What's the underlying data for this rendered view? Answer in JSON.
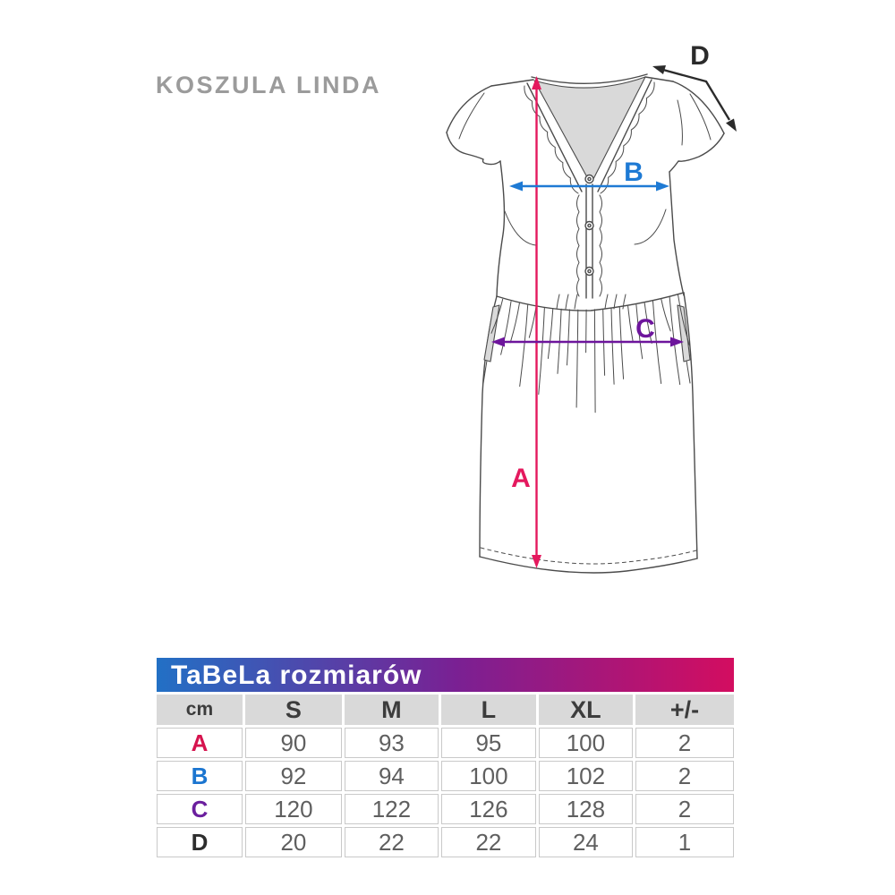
{
  "title": "KOSZULA LINDA",
  "diagram": {
    "arrows": {
      "a": {
        "label": "A",
        "color": "#e4195e"
      },
      "b": {
        "label": "B",
        "color": "#1e7ad4"
      },
      "c": {
        "label": "C",
        "color": "#6d159c"
      },
      "d": {
        "label": "D",
        "color": "#2b2b2b"
      }
    },
    "outline_color": "#4b4b4b",
    "inset_color": "#d9d9d9"
  },
  "table": {
    "title": "TaBeLa rozmiarów",
    "header_gradient": [
      "#2270c5",
      "#7a2093",
      "#d30d60"
    ],
    "columns": [
      "cm",
      "S",
      "M",
      "L",
      "XL",
      "+/-"
    ],
    "rows": [
      {
        "label": "A",
        "color": "#d6134e",
        "values": [
          "90",
          "93",
          "95",
          "100",
          "2"
        ]
      },
      {
        "label": "B",
        "color": "#1b75d0",
        "values": [
          "92",
          "94",
          "100",
          "102",
          "2"
        ]
      },
      {
        "label": "C",
        "color": "#6b1f9e",
        "values": [
          "120",
          "122",
          "126",
          "128",
          "2"
        ]
      },
      {
        "label": "D",
        "color": "#2d2d2d",
        "values": [
          "20",
          "22",
          "22",
          "24",
          "1"
        ]
      }
    ]
  },
  "chart_data": {
    "type": "table",
    "title": "TaBeLa rozmiarów",
    "columns": [
      "cm",
      "S",
      "M",
      "L",
      "XL",
      "+/-"
    ],
    "rows": [
      [
        "A",
        90,
        93,
        95,
        100,
        2
      ],
      [
        "B",
        92,
        94,
        100,
        102,
        2
      ],
      [
        "C",
        120,
        122,
        126,
        128,
        2
      ],
      [
        "D",
        20,
        22,
        22,
        24,
        1
      ]
    ]
  }
}
